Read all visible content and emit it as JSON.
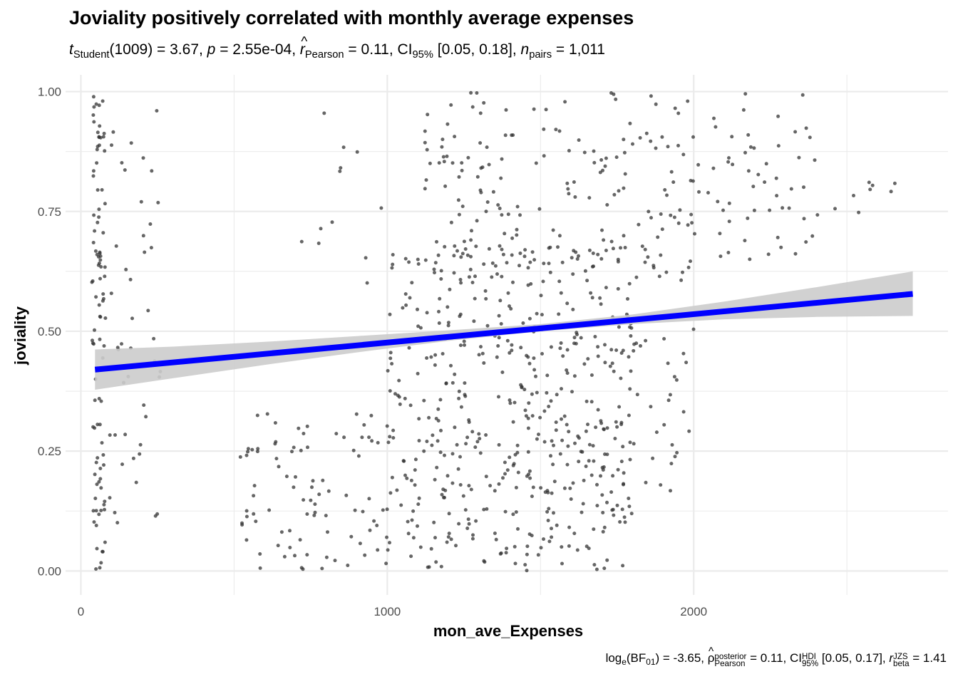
{
  "chart_data": {
    "type": "scatter",
    "title": "Joviality positively correlated with monthly average expenses",
    "subtitle": {
      "t_symbol": "t",
      "t_sub": "Student",
      "t_text": "(1009) = 3.67, ",
      "p_symbol": "p",
      "p_text": " = 2.55e-04, ",
      "r_symbol": "r",
      "r_sub": "Pearson",
      "r_text": " = 0.11, CI",
      "ci_sub": "95%",
      "ci_text": " [0.05, 0.18], ",
      "n_symbol": "n",
      "n_sub": "pairs",
      "n_text": " = 1,011"
    },
    "caption": {
      "log_text": "log",
      "log_sub": "e",
      "bf_open": "(BF",
      "bf_sub": "01",
      "bf_close": ") = -3.65, ",
      "rho_symbol": "ρ",
      "rho_sup": "posterior",
      "rho_sub": "Pearson",
      "rho_text": " = 0.11, CI",
      "ci_sup": "HDI",
      "ci_sub": "95%",
      "ci_text": " [0.05, 0.17], ",
      "rb_symbol": "r",
      "rb_sup": "JZS",
      "rb_sub": "beta",
      "rb_text": " = 1.41"
    },
    "xlabel": "mon_ave_Expenses",
    "ylabel": "joviality",
    "xlim": [
      -50,
      2830
    ],
    "ylim": [
      -0.05,
      1.035
    ],
    "x_ticks": [
      0,
      1000,
      2000
    ],
    "x_tick_labels": [
      "0",
      "1000",
      "2000"
    ],
    "x_minor_ticks": [
      500,
      1500,
      2500
    ],
    "y_ticks": [
      0,
      0.25,
      0.5,
      0.75,
      1.0
    ],
    "y_tick_labels": [
      "0.00",
      "0.25",
      "0.50",
      "0.75",
      "1.00"
    ],
    "y_minor_ticks": [
      0.125,
      0.375,
      0.625,
      0.875
    ],
    "grid": true,
    "n_points": 1011,
    "fit_line": {
      "x": [
        46,
        2715
      ],
      "y": [
        0.42,
        0.578
      ]
    },
    "confidence_band": {
      "x": [
        46,
        300,
        600,
        900,
        1200,
        1500,
        1800,
        2100,
        2400,
        2715
      ],
      "lower": [
        0.378,
        0.402,
        0.43,
        0.456,
        0.48,
        0.5,
        0.515,
        0.525,
        0.53,
        0.532
      ],
      "upper": [
        0.462,
        0.468,
        0.478,
        0.49,
        0.502,
        0.515,
        0.535,
        0.562,
        0.592,
        0.625
      ]
    },
    "scatter_clusters": [
      {
        "x_min": 35,
        "x_max": 80,
        "y_min": 0.0,
        "y_max": 1.0,
        "count": 100
      },
      {
        "x_min": 90,
        "x_max": 260,
        "y_min": 0.1,
        "y_max": 1.0,
        "count": 45
      },
      {
        "x_min": 520,
        "x_max": 1000,
        "y_min": 0.0,
        "y_max": 0.33,
        "count": 90
      },
      {
        "x_min": 650,
        "x_max": 1000,
        "y_min": 0.6,
        "y_max": 0.97,
        "count": 12
      },
      {
        "x_min": 1000,
        "x_max": 1800,
        "y_min": 0.0,
        "y_max": 0.68,
        "count": 480
      },
      {
        "x_min": 1100,
        "x_max": 2000,
        "y_min": 0.6,
        "y_max": 1.0,
        "count": 180
      },
      {
        "x_min": 1700,
        "x_max": 2000,
        "y_min": 0.15,
        "y_max": 0.55,
        "count": 40
      },
      {
        "x_min": 2000,
        "x_max": 2400,
        "y_min": 0.65,
        "y_max": 1.0,
        "count": 55
      },
      {
        "x_min": 2400,
        "x_max": 2715,
        "y_min": 0.74,
        "y_max": 0.85,
        "count": 9
      }
    ],
    "colors": {
      "points": "#333333",
      "fit_line": "#0000ff",
      "band": "#cccccc",
      "grid": "#ebebeb",
      "tick_labels": "#4d4d4d"
    }
  }
}
